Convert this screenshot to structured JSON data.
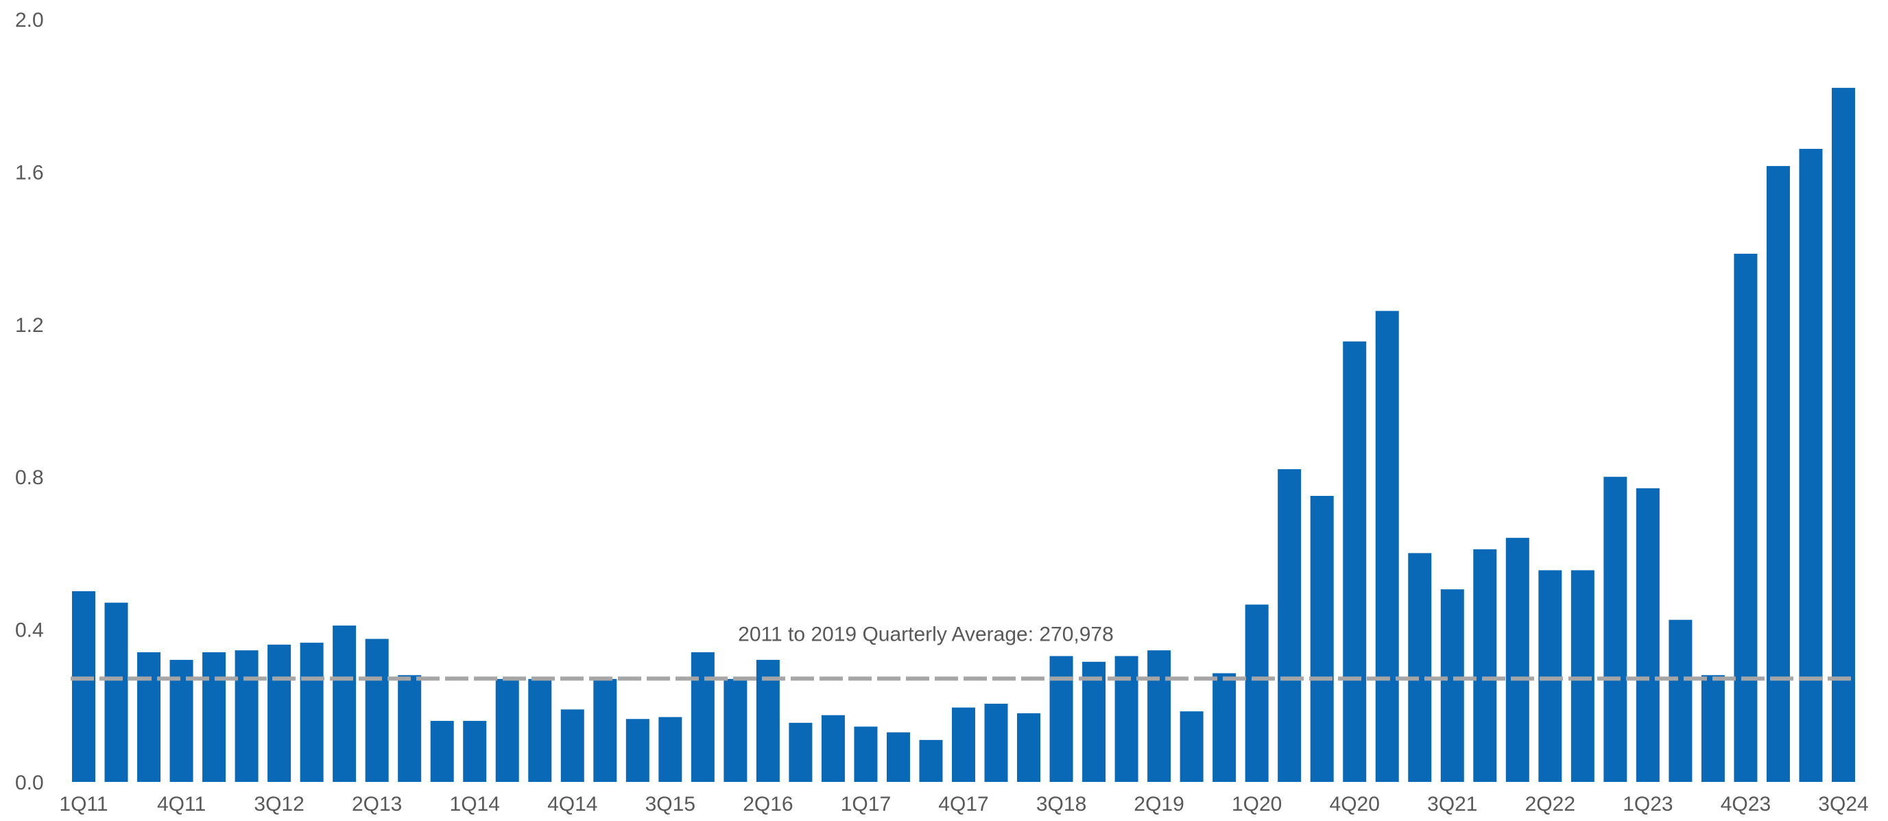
{
  "chart_data": {
    "type": "bar",
    "title": "",
    "xlabel": "",
    "ylabel": "",
    "ylim": [
      0,
      2.0
    ],
    "y_ticks": [
      "0.0",
      "0.4",
      "0.8",
      "1.2",
      "1.6",
      "2.0"
    ],
    "y_tick_values": [
      0,
      0.4,
      0.8,
      1.2,
      1.6,
      2.0
    ],
    "grid": false,
    "legend": "none",
    "categories": [
      "1Q11",
      "2Q11",
      "3Q11",
      "4Q11",
      "1Q12",
      "2Q12",
      "3Q12",
      "4Q12",
      "1Q13",
      "2Q13",
      "3Q13",
      "4Q13",
      "1Q14",
      "2Q14",
      "3Q14",
      "4Q14",
      "1Q15",
      "2Q15",
      "3Q15",
      "4Q15",
      "1Q16",
      "2Q16",
      "3Q16",
      "4Q16",
      "1Q17",
      "2Q17",
      "3Q17",
      "4Q17",
      "1Q18",
      "2Q18",
      "3Q18",
      "4Q18",
      "1Q19",
      "2Q19",
      "3Q19",
      "4Q19",
      "1Q20",
      "2Q20",
      "3Q20",
      "4Q20",
      "1Q21",
      "2Q21",
      "3Q21",
      "4Q21",
      "1Q22",
      "2Q22",
      "3Q22",
      "4Q22",
      "1Q23",
      "2Q23",
      "3Q23",
      "4Q23",
      "1Q24",
      "2Q24",
      "3Q24"
    ],
    "x_tick_labels": [
      "1Q11",
      "4Q11",
      "3Q12",
      "2Q13",
      "1Q14",
      "4Q14",
      "3Q15",
      "2Q16",
      "1Q17",
      "4Q17",
      "3Q18",
      "2Q19",
      "1Q20",
      "4Q20",
      "3Q21",
      "2Q22",
      "1Q23",
      "4Q23",
      "3Q24"
    ],
    "values": [
      0.5,
      0.47,
      0.34,
      0.32,
      0.34,
      0.345,
      0.36,
      0.365,
      0.41,
      0.375,
      0.28,
      0.16,
      0.16,
      0.27,
      0.27,
      0.19,
      0.27,
      0.165,
      0.17,
      0.34,
      0.27,
      0.32,
      0.155,
      0.175,
      0.145,
      0.13,
      0.11,
      0.195,
      0.205,
      0.18,
      0.33,
      0.315,
      0.33,
      0.345,
      0.185,
      0.285,
      0.465,
      0.82,
      0.75,
      1.155,
      1.235,
      0.6,
      0.505,
      0.61,
      0.64,
      0.555,
      0.555,
      0.8,
      0.77,
      0.425,
      0.28,
      1.385,
      1.615,
      1.66,
      1.82
    ],
    "reference_line": {
      "value": 0.270978,
      "label": "2011 to 2019 Quarterly Average: 270,978"
    },
    "colors": {
      "bar": "#0969B6",
      "reference_line": "#A6A6A6",
      "axis_text": "#595959"
    }
  }
}
